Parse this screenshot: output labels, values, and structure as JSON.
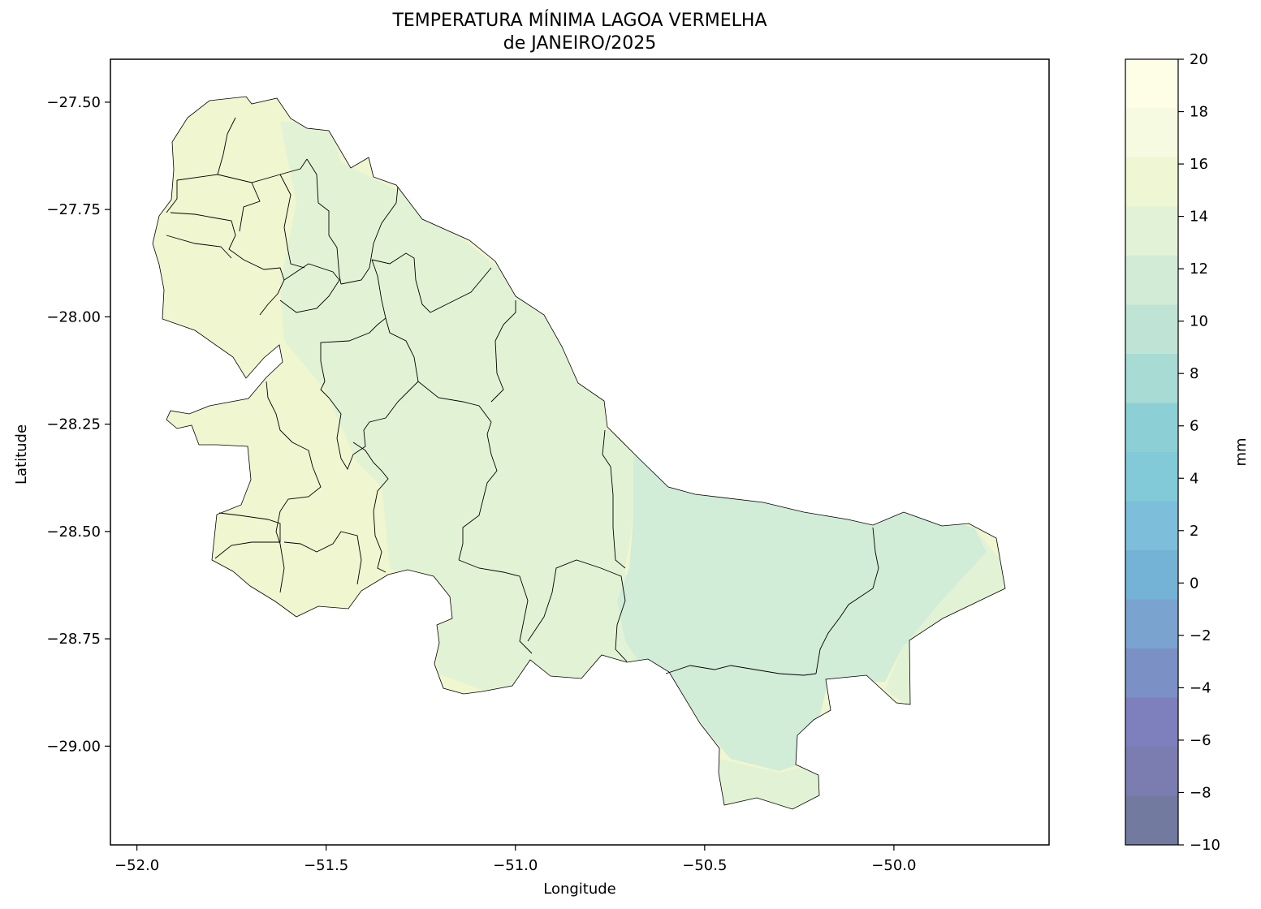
{
  "chart_data": {
    "type": "heatmap",
    "title_line1": "TEMPERATURA MÍNIMA LAGOA VERMELHA",
    "title_line2": "de JANEIRO/2025",
    "xlabel": "Longitude",
    "ylabel": "Latitude",
    "x_ticks": [
      "−52.0",
      "−51.5",
      "−51.0",
      "−50.5",
      "−50.0"
    ],
    "x_tick_values": [
      -52.0,
      -51.5,
      -51.0,
      -50.5,
      -50.0
    ],
    "y_ticks": [
      "−27.50",
      "−27.75",
      "−28.00",
      "−28.25",
      "−28.50",
      "−28.75",
      "−29.00"
    ],
    "y_tick_values": [
      -27.5,
      -27.75,
      -28.0,
      -28.25,
      -28.5,
      -28.75,
      -29.0
    ],
    "xlim": [
      -52.07,
      -49.59
    ],
    "ylim": [
      -29.23,
      -27.4
    ],
    "colorbar": {
      "label": "mm",
      "range": [
        -10,
        20
      ],
      "tick_labels": [
        "20",
        "18",
        "16",
        "14",
        "12",
        "10",
        "8",
        "6",
        "4",
        "2",
        "0",
        "−2",
        "−4",
        "−6",
        "−8",
        "−10"
      ],
      "tick_values": [
        20,
        18,
        16,
        14,
        12,
        10,
        8,
        6,
        4,
        2,
        0,
        -2,
        -4,
        -6,
        -8,
        -10
      ],
      "band_colors": [
        "#fefee7",
        "#f6fae0",
        "#eef6d3",
        "#e2f2d6",
        "#d1ebd6",
        "#bfe4d6",
        "#a8dbd4",
        "#8cd0d5",
        "#82cad8",
        "#7dbedb",
        "#74b2d6",
        "#7aa3cf",
        "#7b90c4",
        "#7d80bd",
        "#7b7caf",
        "#727aa0"
      ]
    },
    "region_colors": {
      "west": "#eff6d0",
      "center": "#e2f3d5",
      "east": "#d1ecd7"
    },
    "grid": false
  }
}
